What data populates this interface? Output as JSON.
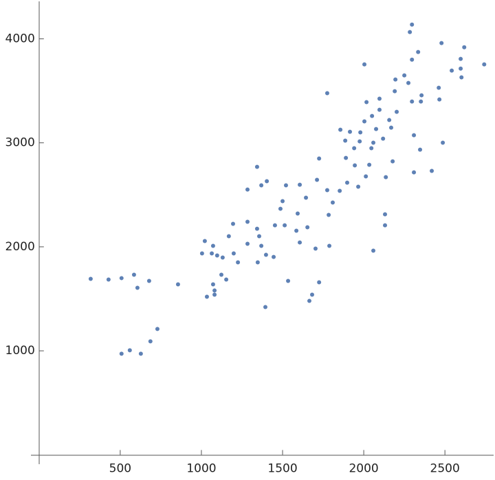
{
  "chart_data": {
    "type": "scatter",
    "color": "#5e81b5",
    "xlim": [
      -50,
      2800
    ],
    "ylim": [
      -90,
      4360
    ],
    "xticks": [
      500,
      1000,
      1500,
      2000,
      2500
    ],
    "yticks": [
      1000,
      2000,
      3000,
      4000
    ],
    "x": [
      318,
      428,
      508,
      585,
      606,
      678,
      856,
      508,
      559,
      627,
      686,
      729,
      1004,
      1021,
      1034,
      1064,
      1072,
      1072,
      1081,
      1081,
      1097,
      1123,
      1131,
      1153,
      1169,
      1195,
      1199,
      1225,
      1284,
      1284,
      1284,
      1343,
      1343,
      1347,
      1356,
      1369,
      1369,
      1398,
      1403,
      1394,
      1445,
      1453,
      1487,
      1500,
      1513,
      1521,
      1534,
      1585,
      1593,
      1606,
      1606,
      1644,
      1653,
      1665,
      1682,
      1703,
      1712,
      1725,
      1725,
      1775,
      1775,
      1784,
      1788,
      1809,
      1852,
      1856,
      1886,
      1890,
      1898,
      1915,
      1941,
      1945,
      1966,
      1975,
      1979,
      2004,
      2004,
      2013,
      2017,
      2034,
      2047,
      2051,
      2059,
      2059,
      2076,
      2097,
      2097,
      2119,
      2131,
      2131,
      2136,
      2157,
      2169,
      2178,
      2195,
      2191,
      2203,
      2250,
      2275,
      2284,
      2297,
      2297,
      2297,
      2309,
      2309,
      2335,
      2347,
      2352,
      2356,
      2419,
      2462,
      2466,
      2479,
      2487,
      2542,
      2597,
      2597,
      2602,
      2619,
      2742
    ],
    "y": [
      1692,
      1685,
      1699,
      1732,
      1606,
      1672,
      1639,
      972,
      1005,
      972,
      1091,
      1210,
      1937,
      2056,
      1520,
      1937,
      2009,
      1639,
      1580,
      1540,
      1917,
      1732,
      1897,
      1685,
      2102,
      2221,
      1937,
      1851,
      2551,
      2241,
      2029,
      2769,
      2174,
      1851,
      2102,
      2591,
      2009,
      1923,
      2631,
      1421,
      1903,
      2207,
      2366,
      2439,
      2207,
      2591,
      1672,
      2155,
      2320,
      2597,
      2042,
      2472,
      2188,
      1480,
      1540,
      1983,
      2644,
      2849,
      1659,
      3477,
      2545,
      2307,
      2009,
      2426,
      2538,
      3126,
      3021,
      2855,
      2617,
      3106,
      2948,
      2783,
      2578,
      3014,
      3100,
      3206,
      3754,
      2677,
      3391,
      2789,
      2948,
      3258,
      3001,
      1963,
      3133,
      3424,
      3318,
      3040,
      2313,
      2207,
      2670,
      3219,
      3146,
      2822,
      3609,
      3496,
      3298,
      3648,
      3576,
      4065,
      4137,
      3800,
      3397,
      3073,
      2716,
      3873,
      2934,
      3397,
      3457,
      2730,
      3529,
      3417,
      3959,
      3001,
      3695,
      3807,
      3714,
      3629,
      3919,
      3754
    ]
  }
}
